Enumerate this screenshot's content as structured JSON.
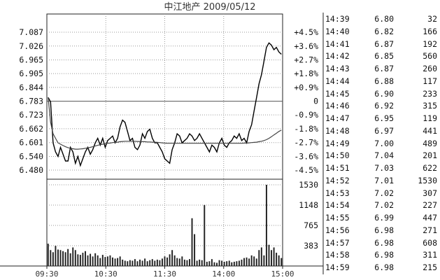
{
  "chart_data": {
    "type": "line",
    "title": "中江地产 2009/05/12",
    "prev_close": 6.783,
    "price_ticks": [
      "7.087",
      "7.026",
      "6.965",
      "6.905",
      "6.844",
      "6.783",
      "6.723",
      "6.662",
      "6.601",
      "6.540",
      "6.480"
    ],
    "pct_ticks": [
      "+4.5%",
      "+3.6%",
      "+2.7%",
      "+1.8%",
      "+0.9%",
      "0",
      "-0.9%",
      "-1.8%",
      "-2.7%",
      "-3.6%",
      "-4.5%"
    ],
    "ylim": [
      6.48,
      7.087
    ],
    "volume_ticks": [
      "1530",
      "1148",
      "765",
      "383"
    ],
    "volume_ylim": [
      0,
      1530
    ],
    "xticks": [
      "09:30",
      "10:30",
      "11:30",
      "14:00",
      "15:00"
    ],
    "series": [
      {
        "values": [
          6.8,
          6.78,
          6.6,
          6.56,
          6.54,
          6.58,
          6.55,
          6.52,
          6.52,
          6.58,
          6.56,
          6.51,
          6.54,
          6.5,
          6.53,
          6.56,
          6.58,
          6.55,
          6.57,
          6.6,
          6.62,
          6.59,
          6.62,
          6.58,
          6.61,
          6.62,
          6.63,
          6.6,
          6.62,
          6.67,
          6.7,
          6.69,
          6.65,
          6.61,
          6.62,
          6.58,
          6.57,
          6.59,
          6.64,
          6.62,
          6.65,
          6.66,
          6.62,
          6.6,
          6.6,
          6.58,
          6.56,
          6.53,
          6.52,
          6.51,
          6.57,
          6.6,
          6.64,
          6.63,
          6.6,
          6.61,
          6.62,
          6.64,
          6.63,
          6.61,
          6.62,
          6.64,
          6.62,
          6.6,
          6.58,
          6.56,
          6.59,
          6.58,
          6.56,
          6.6,
          6.62,
          6.59,
          6.58,
          6.6,
          6.61,
          6.63,
          6.62,
          6.64,
          6.61,
          6.62,
          6.6,
          6.65,
          6.68,
          6.74,
          6.8,
          6.86,
          6.9,
          6.96,
          7.02,
          7.04,
          7.03,
          7.01,
          7.02,
          7.0,
          6.99
        ]
      },
      {
        "values": [
          6.8,
          6.69,
          6.64,
          6.62,
          6.6,
          6.594,
          6.588,
          6.583,
          6.579,
          6.576,
          6.574,
          6.572,
          6.572,
          6.573,
          6.574,
          6.576,
          6.578,
          6.58,
          6.583,
          6.586,
          6.589,
          6.592,
          6.594,
          6.596,
          6.598,
          6.599,
          6.601,
          6.602,
          6.603,
          6.605,
          6.606,
          6.607,
          6.607,
          6.607,
          6.607,
          6.607,
          6.606,
          6.606,
          6.605,
          6.605,
          6.604,
          6.604,
          6.603,
          6.603,
          6.602,
          6.601,
          6.6,
          6.599,
          6.598,
          6.598,
          6.598,
          6.598,
          6.598,
          6.598,
          6.598,
          6.598,
          6.598,
          6.598,
          6.598,
          6.598,
          6.598,
          6.598,
          6.598,
          6.598,
          6.598,
          6.598,
          6.598,
          6.598,
          6.598,
          6.598,
          6.598,
          6.598,
          6.598,
          6.598,
          6.598,
          6.598,
          6.598,
          6.598,
          6.598,
          6.599,
          6.599,
          6.6,
          6.601,
          6.602,
          6.603,
          6.605,
          6.607,
          6.61,
          6.614,
          6.62,
          6.627,
          6.635,
          6.642,
          6.65,
          6.656
        ]
      }
    ],
    "volume": [
      420,
      300,
      260,
      380,
      310,
      300,
      280,
      260,
      320,
      240,
      350,
      300,
      220,
      210,
      250,
      280,
      200,
      230,
      180,
      240,
      200,
      150,
      210,
      170,
      180,
      200,
      160,
      140,
      150,
      180,
      120,
      100,
      90,
      110,
      100,
      130,
      90,
      120,
      100,
      140,
      90,
      110,
      130,
      100,
      120,
      110,
      140,
      180,
      160,
      220,
      300,
      200,
      150,
      140,
      180,
      120,
      110,
      130,
      900,
      600,
      100,
      120,
      110,
      1150,
      80,
      90,
      130,
      70,
      60,
      110,
      100,
      80,
      90,
      100,
      70,
      80,
      90,
      100,
      120,
      150,
      160,
      140,
      200,
      180,
      140,
      300,
      350,
      200,
      1530,
      400,
      300,
      350,
      250,
      200,
      150
    ]
  },
  "trade_tape": [
    {
      "time": "14:39",
      "price": "6.80",
      "volume": "32"
    },
    {
      "time": "14:40",
      "price": "6.82",
      "volume": "166"
    },
    {
      "time": "14:41",
      "price": "6.87",
      "volume": "192"
    },
    {
      "time": "14:42",
      "price": "6.85",
      "volume": "560"
    },
    {
      "time": "14:43",
      "price": "6.87",
      "volume": "260"
    },
    {
      "time": "14:44",
      "price": "6.88",
      "volume": "117"
    },
    {
      "time": "14:45",
      "price": "6.90",
      "volume": "233"
    },
    {
      "time": "14:46",
      "price": "6.92",
      "volume": "315"
    },
    {
      "time": "14:47",
      "price": "6.95",
      "volume": "119"
    },
    {
      "time": "14:48",
      "price": "6.97",
      "volume": "441"
    },
    {
      "time": "14:49",
      "price": "7.00",
      "volume": "489"
    },
    {
      "time": "14:50",
      "price": "7.04",
      "volume": "201"
    },
    {
      "time": "14:51",
      "price": "7.03",
      "volume": "622"
    },
    {
      "time": "14:52",
      "price": "7.01",
      "volume": "1530"
    },
    {
      "time": "14:53",
      "price": "7.02",
      "volume": "307"
    },
    {
      "time": "14:54",
      "price": "7.02",
      "volume": "227"
    },
    {
      "time": "14:55",
      "price": "6.99",
      "volume": "447"
    },
    {
      "time": "14:56",
      "price": "6.98",
      "volume": "271"
    },
    {
      "time": "14:57",
      "price": "6.98",
      "volume": "608"
    },
    {
      "time": "14:58",
      "price": "6.98",
      "volume": "311"
    },
    {
      "time": "14:59",
      "price": "6.98",
      "volume": "215"
    }
  ],
  "colors": {
    "price_line": "#000000",
    "avg_line": "#444444",
    "volume_bar": "#222222",
    "grid": "#9a9a9a",
    "frame": "#222222"
  }
}
